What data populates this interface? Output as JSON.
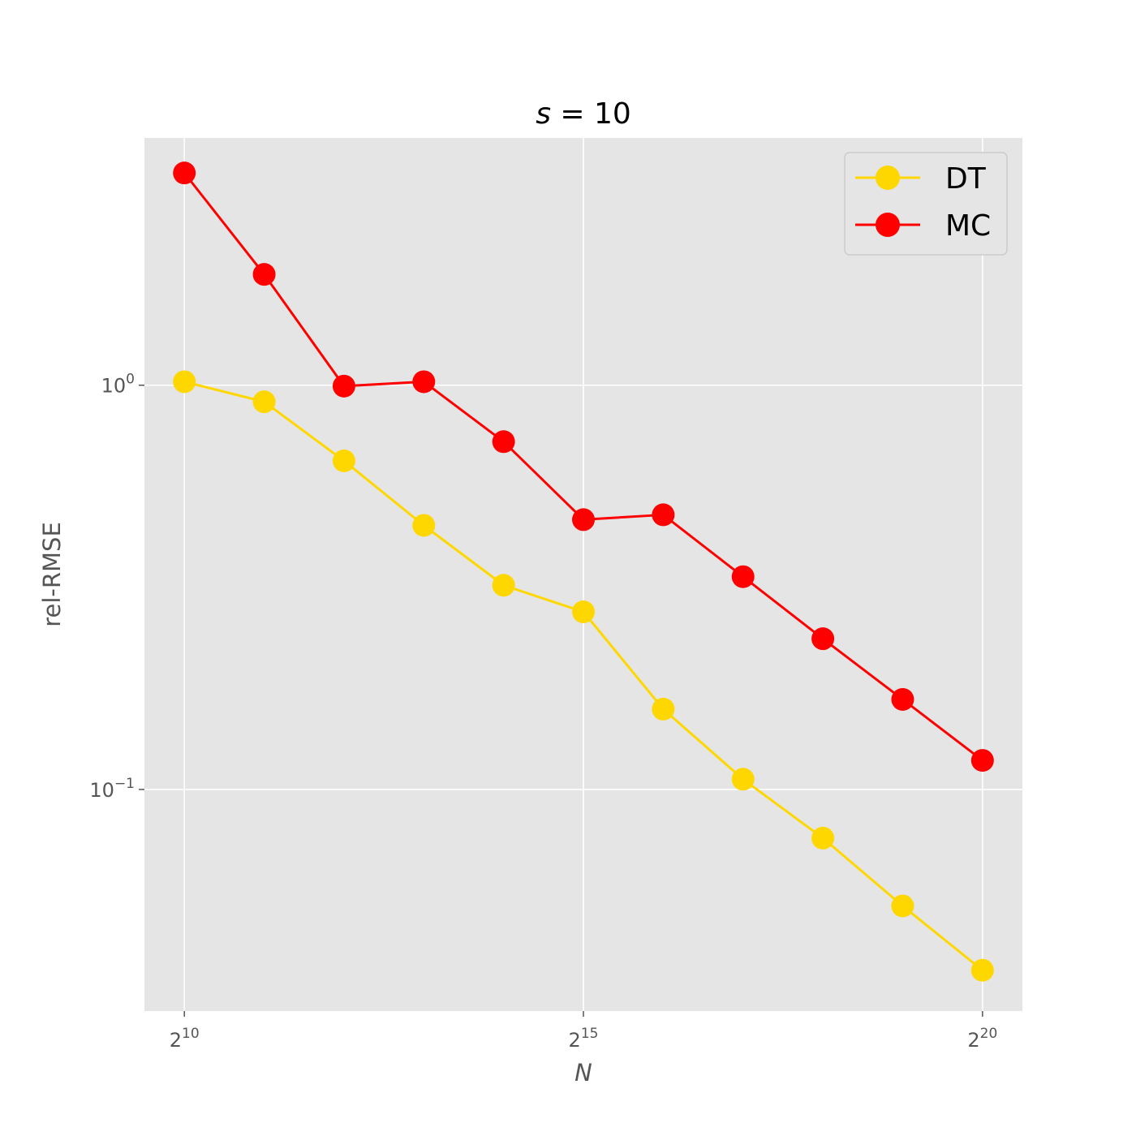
{
  "chart_data": {
    "type": "line",
    "title": "s = 10",
    "title_var": "s",
    "title_rest": " = 10",
    "xlabel": "N",
    "ylabel": "rel-RMSE",
    "x_scale": "log2",
    "y_scale": "log10",
    "x": [
      1024,
      2048,
      4096,
      8192,
      16384,
      32768,
      65536,
      131072,
      262144,
      524288,
      1048576
    ],
    "x_ticks": [
      {
        "base": "2",
        "exp": "10",
        "value": 1024
      },
      {
        "base": "2",
        "exp": "15",
        "value": 32768
      },
      {
        "base": "2",
        "exp": "20",
        "value": 1048576
      }
    ],
    "y_ticks": [
      {
        "base": "10",
        "exp": "0",
        "value": 1
      },
      {
        "base": "10",
        "exp": "−1",
        "value": 0.1
      }
    ],
    "xlim": [
      724,
      1482910
    ],
    "ylim": [
      0.0283,
      4.09
    ],
    "grid": true,
    "legend_position": "top-right",
    "series": [
      {
        "name": "DT",
        "color": "#FFD700",
        "marker": "circle",
        "values": [
          1.02,
          0.91,
          0.65,
          0.45,
          0.32,
          0.275,
          0.158,
          0.106,
          0.0758,
          0.0515,
          0.0357
        ]
      },
      {
        "name": "MC",
        "color": "#FF0000",
        "marker": "circle",
        "values": [
          3.35,
          1.88,
          0.995,
          1.02,
          0.725,
          0.465,
          0.478,
          0.336,
          0.236,
          0.167,
          0.118
        ]
      }
    ]
  }
}
